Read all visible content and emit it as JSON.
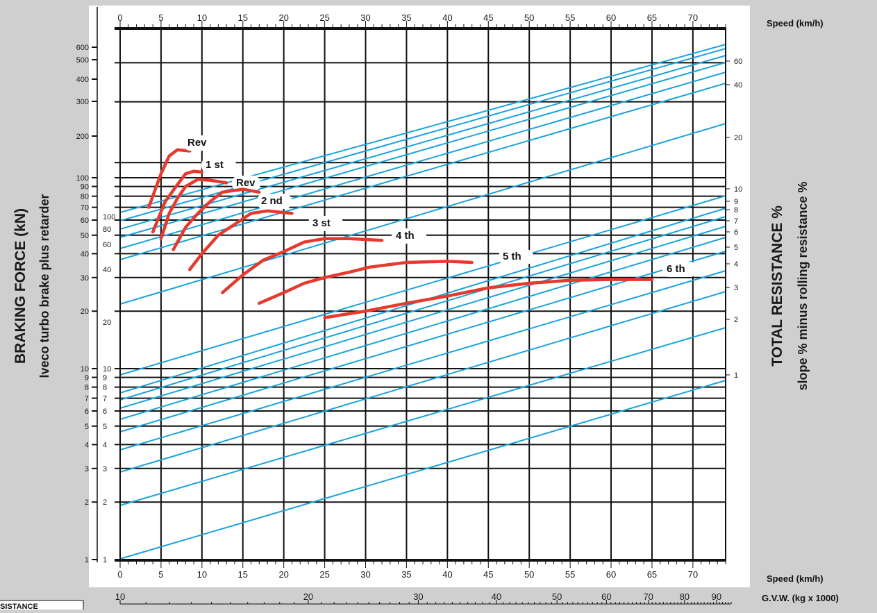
{
  "titles": {
    "left_line1": "BRAKING FORCE (kN)",
    "left_line2": "Iveco turbo brake plus retarder",
    "right_line1": "TOTAL RESISTANCE %",
    "right_line2": "slope % minus rolling resistance %",
    "speed_top": "Speed (km/h)",
    "speed_bottom": "Speed (km/h)",
    "gvw": "G.V.W. (kg x 1000)",
    "inset_fragment": "SISTANCE"
  },
  "colors": {
    "plot_bg": "#ffffff",
    "page_bg": "#cfcfcf",
    "grid": "#111111",
    "resistance_lines": "#1aa3dc",
    "gear_curves": "#e63a2e"
  },
  "chart_data": {
    "type": "line",
    "x_axis": {
      "label": "Speed (km/h)",
      "range": [
        0,
        74
      ],
      "ticks": [
        0,
        5,
        10,
        15,
        20,
        25,
        30,
        35,
        40,
        45,
        50,
        55,
        60,
        65,
        70
      ],
      "tick_labels": [
        "0",
        "5",
        "10",
        "15",
        "20",
        "25",
        "30",
        "35",
        "40",
        "45",
        "50",
        "55",
        "60",
        "65",
        "70"
      ]
    },
    "y_axis_left_upper": {
      "label": "BRAKING FORCE (kN)",
      "scale": "log",
      "ticks": [
        100,
        90,
        80,
        70,
        60,
        50,
        40,
        30,
        20,
        10,
        9,
        8,
        7,
        6,
        5,
        4,
        3,
        2,
        1
      ],
      "tick_labels": [
        "100",
        "90",
        "80",
        "70",
        "60",
        "50",
        "40",
        "30",
        "20",
        "10",
        "9",
        "8",
        "7",
        "6",
        "5",
        "4",
        "3",
        "2",
        "1"
      ],
      "extra_ticks": [
        600,
        500,
        400,
        300,
        200
      ],
      "extra_tick_labels": [
        "600",
        "500",
        "400",
        "300",
        "200"
      ]
    },
    "y_axis_left_inner": {
      "ticks": [
        100,
        80,
        60,
        40,
        20,
        10,
        9,
        8,
        7,
        6,
        5,
        4,
        3,
        2,
        1
      ],
      "tick_labels": [
        "100",
        "80",
        "60",
        "40",
        "20",
        "10",
        "9",
        "8",
        "7",
        "6",
        "5",
        "4",
        "3",
        "2",
        "1"
      ]
    },
    "y_axis_right": {
      "label": "TOTAL RESISTANCE %",
      "ticks": [
        60,
        40,
        20,
        10,
        9,
        8,
        7,
        6,
        5,
        4,
        3,
        2,
        1
      ],
      "tick_labels": [
        "60",
        "40",
        "20",
        "10",
        "9",
        "8",
        "7",
        "6",
        "5",
        "4",
        "3",
        "2",
        "1"
      ]
    },
    "gvw_axis": {
      "label": "G.V.W. (kg x 1000)",
      "tick_labels": [
        "10",
        "20",
        "30",
        "40",
        "50",
        "60",
        "70",
        "80",
        "90"
      ]
    },
    "series": [
      {
        "name": "Rev",
        "points": [
          [
            3.5,
            70
          ],
          [
            5,
            105
          ],
          [
            6,
            130
          ],
          [
            7,
            140
          ],
          [
            8.5,
            138
          ]
        ]
      },
      {
        "name": "1 st",
        "points": [
          [
            4,
            52
          ],
          [
            5.5,
            75
          ],
          [
            7,
            92
          ],
          [
            8,
            105
          ],
          [
            9,
            108
          ],
          [
            10,
            107
          ]
        ]
      },
      {
        "name": "Rev",
        "points": [
          [
            5,
            48
          ],
          [
            6,
            65
          ],
          [
            7,
            78
          ],
          [
            8,
            90
          ],
          [
            9.5,
            98
          ],
          [
            11,
            97
          ],
          [
            13,
            94
          ]
        ]
      },
      {
        "name": "2 nd",
        "points": [
          [
            6.5,
            42
          ],
          [
            8,
            55
          ],
          [
            9.5,
            65
          ],
          [
            11,
            75
          ],
          [
            12.5,
            84
          ],
          [
            15,
            87
          ],
          [
            17,
            84
          ]
        ]
      },
      {
        "name": "3 st",
        "points": [
          [
            8.5,
            33
          ],
          [
            10,
            40
          ],
          [
            12,
            50
          ],
          [
            14,
            57
          ],
          [
            16,
            65
          ],
          [
            18,
            67
          ],
          [
            21,
            65
          ]
        ]
      },
      {
        "name": "4 th",
        "points": [
          [
            12.5,
            25
          ],
          [
            15,
            31
          ],
          [
            17.5,
            37
          ],
          [
            20,
            41
          ],
          [
            22.5,
            46
          ],
          [
            25,
            48
          ],
          [
            28,
            48
          ],
          [
            32,
            47
          ]
        ]
      },
      {
        "name": "5 th",
        "points": [
          [
            17,
            22
          ],
          [
            20,
            25
          ],
          [
            22.5,
            28
          ],
          [
            25,
            30
          ],
          [
            28,
            32
          ],
          [
            30.5,
            34
          ],
          [
            35,
            36
          ],
          [
            40,
            36.5
          ],
          [
            43,
            36
          ]
        ]
      },
      {
        "name": "6 th",
        "points": [
          [
            25,
            18.5
          ],
          [
            30,
            20
          ],
          [
            35,
            22
          ],
          [
            40,
            24
          ],
          [
            45,
            26.5
          ],
          [
            50,
            28
          ],
          [
            55,
            29
          ],
          [
            60,
            29.3
          ],
          [
            65,
            29.3
          ]
        ]
      }
    ]
  }
}
